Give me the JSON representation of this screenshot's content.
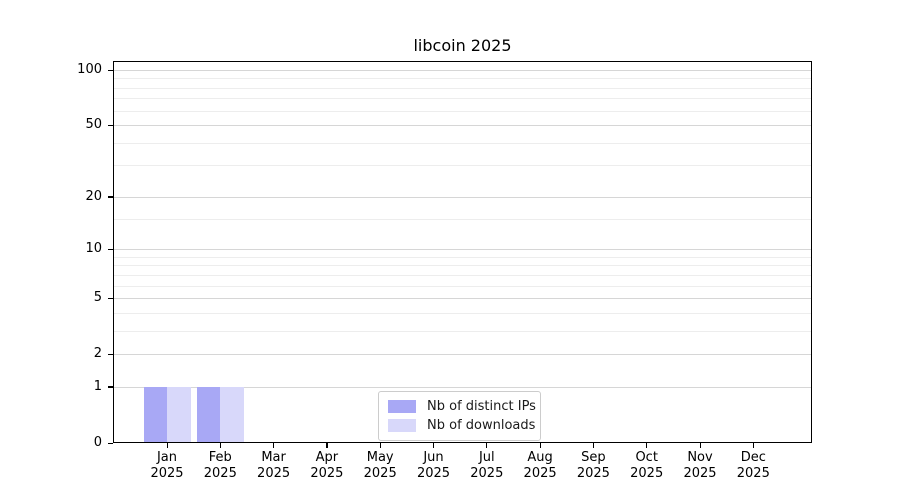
{
  "chart_data": {
    "type": "bar",
    "title": "libcoin 2025",
    "categories": [
      "Jan 2025",
      "Feb 2025",
      "Mar 2025",
      "Apr 2025",
      "May 2025",
      "Jun 2025",
      "Jul 2025",
      "Aug 2025",
      "Sep 2025",
      "Oct 2025",
      "Nov 2025",
      "Dec 2025"
    ],
    "series": [
      {
        "name": "Nb of distinct IPs",
        "color": "#a8a8f5",
        "values": [
          1,
          1,
          0,
          0,
          0,
          0,
          0,
          0,
          0,
          0,
          0,
          0
        ]
      },
      {
        "name": "Nb of downloads",
        "color": "#d8d8fa",
        "values": [
          1,
          1,
          0,
          0,
          0,
          0,
          0,
          0,
          0,
          0,
          0,
          0
        ]
      }
    ],
    "y_ticks": [
      0,
      1,
      2,
      5,
      10,
      20,
      50,
      100
    ],
    "y_minor_ticks": [
      3,
      4,
      6,
      7,
      8,
      9,
      15,
      30,
      40,
      60,
      70,
      80,
      90
    ],
    "y_scale": "log1p",
    "ylim": [
      0,
      112
    ],
    "xlabel": "",
    "ylabel": "",
    "grid": "horizontal major+minor",
    "legend_position": "lower center inside plot",
    "colors": {
      "background": "#ffffff",
      "spine": "#000000",
      "grid_major": "#d6d6d6",
      "grid_minor": "#ededed",
      "legend_border": "#cccccc",
      "text": "#000000"
    }
  }
}
